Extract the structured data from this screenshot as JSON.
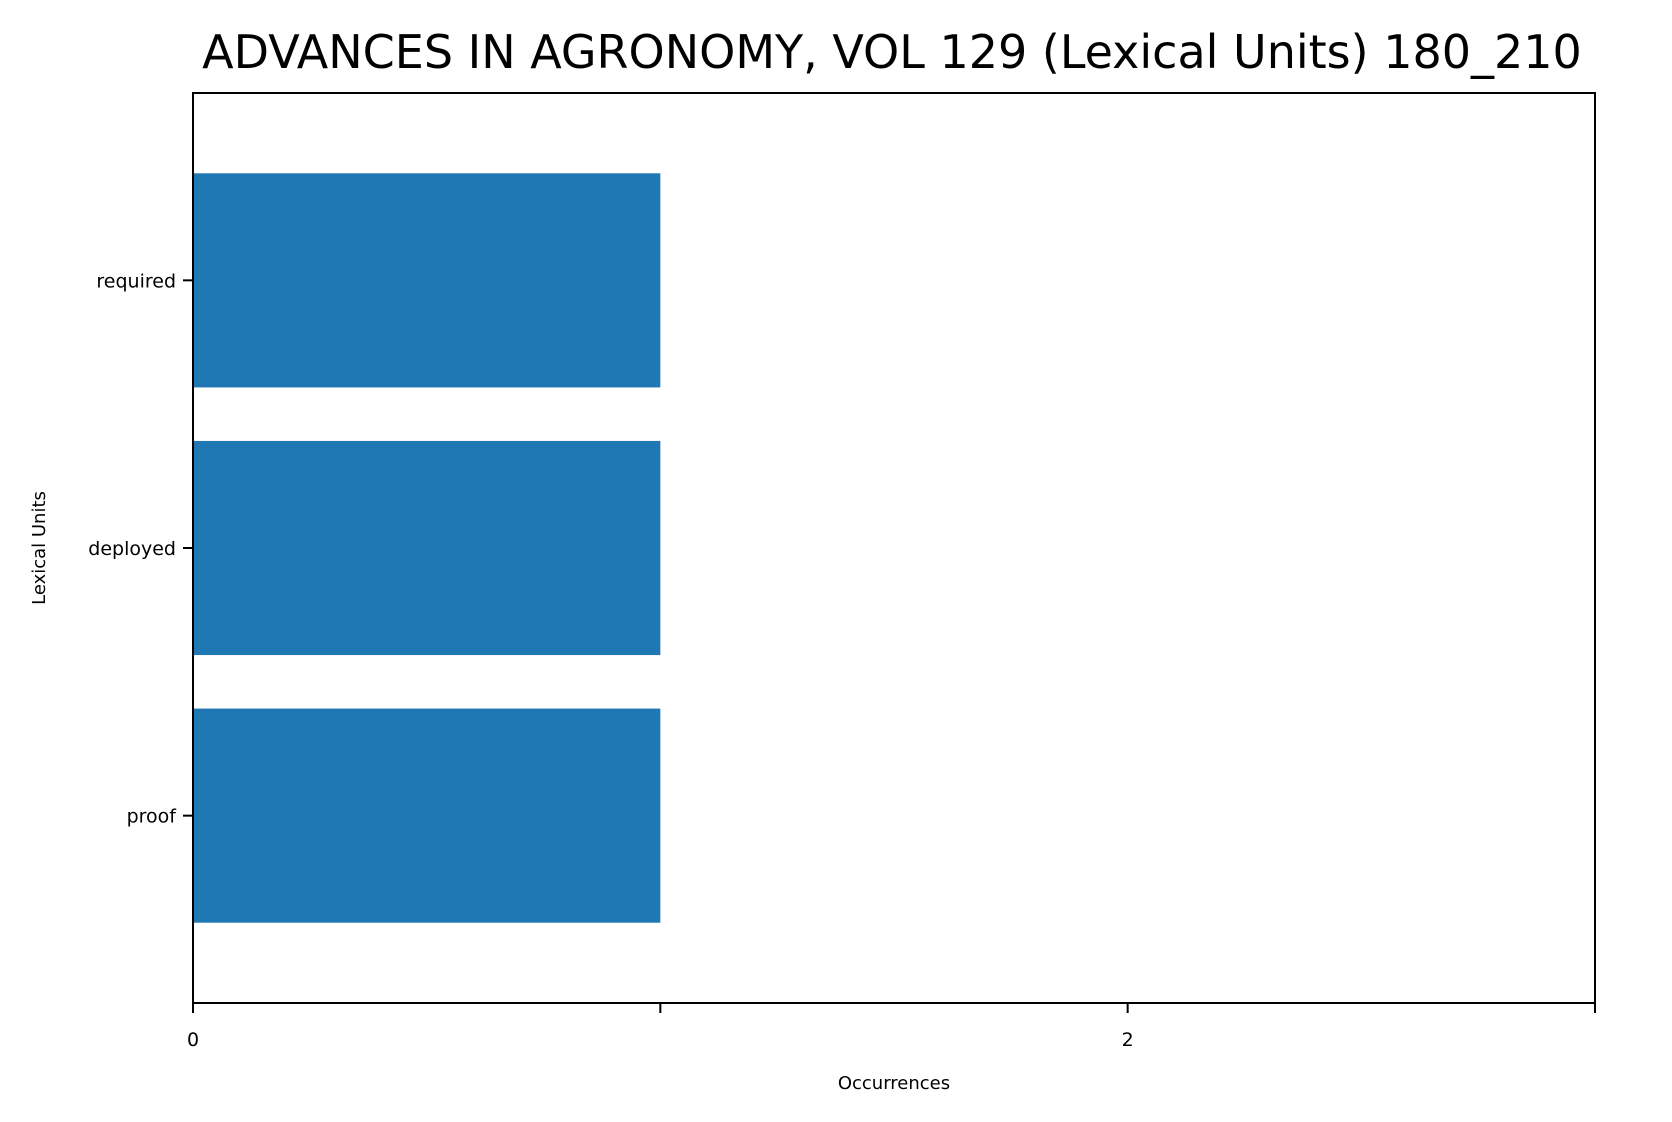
{
  "chart_data": {
    "type": "bar",
    "orientation": "horizontal",
    "title": "ADVANCES IN AGRONOMY, VOL 129 (Lexical Units) 180_210",
    "xlabel": "Occurrences",
    "ylabel": "Lexical Units",
    "categories": [
      "required",
      "deployed",
      "proof"
    ],
    "values": [
      1,
      1,
      1
    ],
    "xlim": [
      0,
      3
    ],
    "x_ticks": [
      0,
      1,
      2,
      3
    ],
    "x_tick_labels": [
      "0",
      "",
      "2",
      ""
    ],
    "bar_color": "#1f77b4",
    "grid": false,
    "legend": "none"
  }
}
